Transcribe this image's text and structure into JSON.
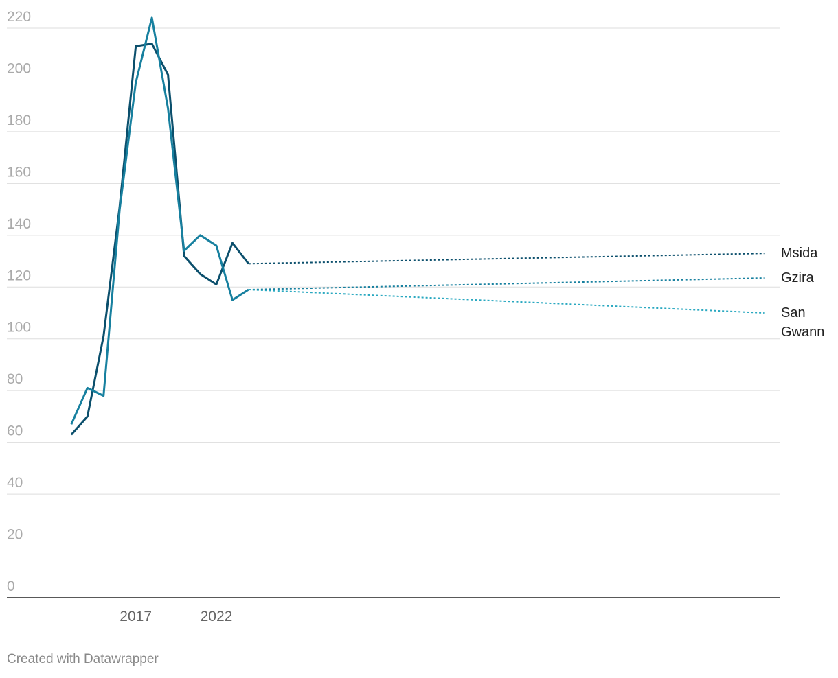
{
  "chart_data": {
    "type": "line",
    "x": [
      2013,
      2014,
      2015,
      2016,
      2017,
      2018,
      2019,
      2020,
      2021,
      2022,
      2023,
      2024,
      2056
    ],
    "series": [
      {
        "name": "Msida",
        "color": "#0b4f6c",
        "values": [
          63,
          70,
          101,
          151,
          213,
          214,
          202,
          132,
          125,
          121,
          137,
          129,
          133
        ]
      },
      {
        "name": "Gzira",
        "color": "#17809f",
        "values": [
          67,
          81,
          78,
          150,
          199,
          224,
          189,
          134,
          140,
          136,
          115,
          119,
          123.5
        ]
      },
      {
        "name": "San Gwann",
        "color": "#29a8c0",
        "values": [
          null,
          null,
          null,
          null,
          null,
          null,
          null,
          null,
          null,
          null,
          null,
          119,
          110
        ]
      }
    ],
    "xlim": [
      2009,
      2057
    ],
    "xticks": [
      2017,
      2022
    ],
    "ylim": [
      0,
      220
    ],
    "yticks": [
      0,
      20,
      40,
      60,
      80,
      100,
      120,
      140,
      160,
      180,
      200,
      220
    ],
    "grid": true,
    "last_segment_dotted": true,
    "footer": "Created with Datawrapper"
  }
}
